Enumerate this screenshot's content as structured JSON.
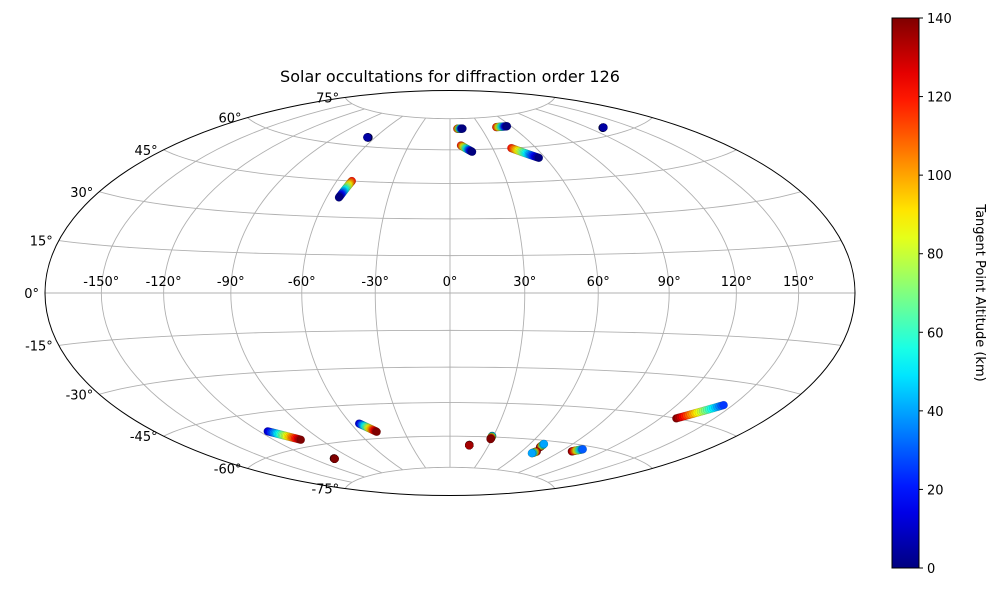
{
  "chart_data": {
    "type": "scatter",
    "projection": "hammer",
    "title": "Solar occultations for diffraction order 126",
    "grid": true,
    "lon_ticks": [
      -150,
      -120,
      -90,
      -60,
      -30,
      0,
      30,
      60,
      90,
      120,
      150
    ],
    "lon_tick_labels": [
      "-150°",
      "-120°",
      "-90°",
      "-60°",
      "-30°",
      "0°",
      "30°",
      "60°",
      "90°",
      "120°",
      "150°"
    ],
    "lat_ticks": [
      75,
      60,
      45,
      30,
      15,
      0,
      -15,
      -30,
      -45,
      -60,
      -75
    ],
    "lat_tick_labels": [
      "75°",
      "60°",
      "45°",
      "30°",
      "15°",
      "0°",
      "-15°",
      "-30°",
      "-45°",
      "-60°",
      "-75°"
    ],
    "colorbar": {
      "label": "Tangent Point Altitude (km)",
      "min": 0,
      "max": 140,
      "colormap": "jet",
      "ticks": [
        0,
        20,
        40,
        60,
        80,
        100,
        120,
        140
      ],
      "tick_labels": [
        "0",
        "20",
        "40",
        "60",
        "80",
        "100",
        "120",
        "140"
      ]
    },
    "tracks": [
      {
        "lon_start": -65,
        "lat_start": 64,
        "lon_end": -66,
        "lat_end": 64,
        "alt_start": 0,
        "alt_end": 5
      },
      {
        "lon_start": -52,
        "lat_start": 45,
        "lon_end": -54,
        "lat_end": 38,
        "alt_start": 120,
        "alt_end": 0
      },
      {
        "lon_start": 7,
        "lat_start": 70,
        "lon_end": 12,
        "lat_end": 70,
        "alt_start": 120,
        "alt_end": 0
      },
      {
        "lon_start": 8,
        "lat_start": 62,
        "lon_end": 15,
        "lat_end": 59,
        "alt_start": 120,
        "alt_end": 0
      },
      {
        "lon_start": 45,
        "lat_start": 70,
        "lon_end": 56,
        "lat_end": 70,
        "alt_start": 120,
        "alt_end": 0
      },
      {
        "lon_start": 43,
        "lat_start": 60,
        "lon_end": 56,
        "lat_end": 55,
        "alt_start": 120,
        "alt_end": 0
      },
      {
        "lon_start": 130,
        "lat_start": 63,
        "lon_end": 131,
        "lat_end": 63,
        "alt_start": 0,
        "alt_end": 5
      },
      {
        "lon_start": 129,
        "lat_start": -45,
        "lon_end": 145,
        "lat_end": -38,
        "alt_start": 140,
        "alt_end": 25
      },
      {
        "lon_start": 98,
        "lat_start": -63,
        "lon_end": 103,
        "lat_end": -61.5,
        "alt_start": 140,
        "alt_end": 30
      },
      {
        "lon_start": 70,
        "lat_start": -63,
        "lon_end": 70,
        "lat_end": -61.5,
        "alt_start": 140,
        "alt_end": 40
      },
      {
        "lon_start": 72,
        "lat_start": -65,
        "lon_end": 70,
        "lat_end": -66,
        "alt_start": 140,
        "alt_end": 40
      },
      {
        "lon_start": 29,
        "lat_start": -59.5,
        "lon_end": 29,
        "lat_end": -61,
        "alt_start": 35,
        "alt_end": 140
      },
      {
        "lon_start": 15,
        "lat_start": -64,
        "lon_end": 15,
        "lat_end": -64.2,
        "alt_start": 140,
        "alt_end": 135
      },
      {
        "lon_start": -55,
        "lat_start": -53,
        "lon_end": -48,
        "lat_end": -57,
        "alt_start": 10,
        "alt_end": 140
      },
      {
        "lon_start": -115,
        "lat_start": -52,
        "lon_end": -103,
        "lat_end": -57,
        "alt_start": 10,
        "alt_end": 140
      },
      {
        "lon_start": -104,
        "lat_start": -66,
        "lon_end": -104,
        "lat_end": -66.2,
        "alt_start": 140,
        "alt_end": 140
      }
    ]
  }
}
